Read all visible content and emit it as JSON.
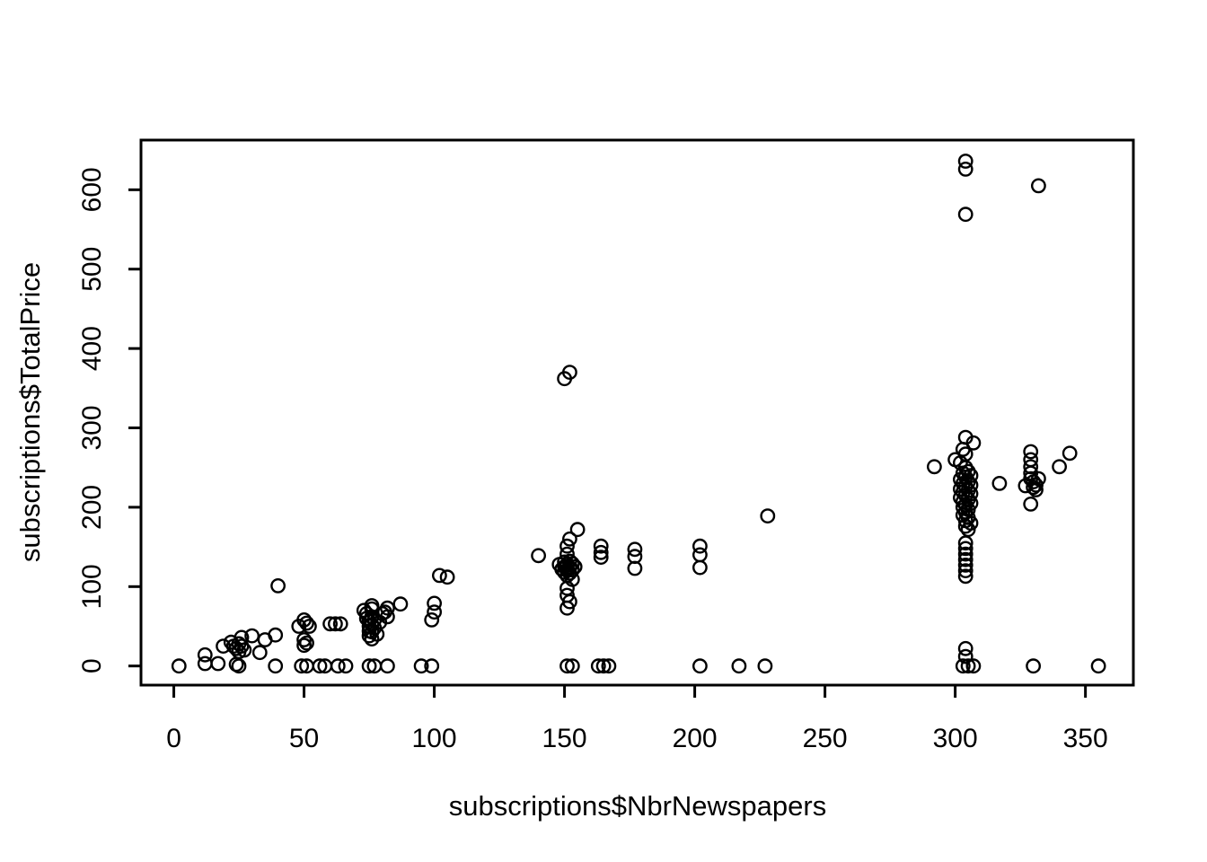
{
  "window": {
    "background_color": "#ffffff",
    "foreground_color": "#000000"
  },
  "chart_data": {
    "type": "scatter",
    "title": "",
    "xlabel": "subscriptions$NbrNewspapers",
    "ylabel": "subscriptions$TotalPrice",
    "x_ticks": [
      0,
      50,
      100,
      150,
      200,
      250,
      300,
      350
    ],
    "y_ticks": [
      0,
      100,
      200,
      300,
      400,
      500,
      600
    ],
    "xlim": [
      -12.6,
      368.4
    ],
    "ylim": [
      -24.1,
      662.6
    ],
    "grid": false,
    "legend": null,
    "marker": {
      "shape": "open-circle",
      "color": "#000000",
      "radius_px": 7.2,
      "stroke_px": 2.4
    },
    "points": [
      [
        2,
        0
      ],
      [
        12,
        14
      ],
      [
        12,
        3
      ],
      [
        17,
        3
      ],
      [
        19,
        25
      ],
      [
        22,
        30
      ],
      [
        23,
        25
      ],
      [
        24,
        22
      ],
      [
        24,
        2
      ],
      [
        25,
        28
      ],
      [
        25,
        18
      ],
      [
        25,
        0
      ],
      [
        26,
        36
      ],
      [
        26,
        25
      ],
      [
        27,
        20
      ],
      [
        30,
        38
      ],
      [
        33,
        17
      ],
      [
        35,
        33
      ],
      [
        39,
        39
      ],
      [
        39,
        0
      ],
      [
        40,
        101
      ],
      [
        48,
        50
      ],
      [
        50,
        58
      ],
      [
        51,
        54
      ],
      [
        52,
        50
      ],
      [
        50,
        33
      ],
      [
        50,
        26
      ],
      [
        51,
        29
      ],
      [
        49,
        0
      ],
      [
        51,
        0
      ],
      [
        56,
        0
      ],
      [
        58,
        0
      ],
      [
        60,
        53
      ],
      [
        62,
        53
      ],
      [
        64,
        53
      ],
      [
        63,
        0
      ],
      [
        66,
        0
      ],
      [
        73,
        70
      ],
      [
        74,
        66
      ],
      [
        74,
        60
      ],
      [
        75,
        56
      ],
      [
        75,
        50
      ],
      [
        75,
        44
      ],
      [
        75,
        38
      ],
      [
        75,
        0
      ],
      [
        76,
        76
      ],
      [
        76,
        72
      ],
      [
        76,
        62
      ],
      [
        76,
        52
      ],
      [
        76,
        43
      ],
      [
        76,
        34
      ],
      [
        77,
        58
      ],
      [
        77,
        48
      ],
      [
        77,
        0
      ],
      [
        78,
        40
      ],
      [
        79,
        55
      ],
      [
        80,
        66
      ],
      [
        81,
        68
      ],
      [
        82,
        73
      ],
      [
        82,
        62
      ],
      [
        82,
        0
      ],
      [
        87,
        78
      ],
      [
        95,
        0
      ],
      [
        99,
        0
      ],
      [
        99,
        58
      ],
      [
        100,
        68
      ],
      [
        100,
        79
      ],
      [
        102,
        114
      ],
      [
        105,
        112
      ],
      [
        140,
        139
      ],
      [
        148,
        128
      ],
      [
        149,
        122
      ],
      [
        150,
        131
      ],
      [
        150,
        125
      ],
      [
        150,
        118
      ],
      [
        150,
        362
      ],
      [
        151,
        151
      ],
      [
        151,
        141
      ],
      [
        151,
        128
      ],
      [
        151,
        121
      ],
      [
        151,
        114
      ],
      [
        151,
        98
      ],
      [
        151,
        89
      ],
      [
        151,
        73
      ],
      [
        151,
        0
      ],
      [
        152,
        160
      ],
      [
        152,
        370
      ],
      [
        152,
        132
      ],
      [
        152,
        124
      ],
      [
        152,
        117
      ],
      [
        152,
        81
      ],
      [
        153,
        129
      ],
      [
        153,
        121
      ],
      [
        153,
        109
      ],
      [
        153,
        0
      ],
      [
        154,
        125
      ],
      [
        155,
        172
      ],
      [
        163,
        0
      ],
      [
        164,
        151
      ],
      [
        164,
        143
      ],
      [
        164,
        137
      ],
      [
        165,
        0
      ],
      [
        167,
        0
      ],
      [
        177,
        147
      ],
      [
        177,
        138
      ],
      [
        177,
        123
      ],
      [
        202,
        151
      ],
      [
        202,
        140
      ],
      [
        202,
        124
      ],
      [
        202,
        0
      ],
      [
        217,
        0
      ],
      [
        227,
        0
      ],
      [
        228,
        189
      ],
      [
        292,
        251
      ],
      [
        300,
        260
      ],
      [
        302,
        256
      ],
      [
        302,
        235
      ],
      [
        302,
        223
      ],
      [
        302,
        212
      ],
      [
        303,
        273
      ],
      [
        303,
        243
      ],
      [
        303,
        230
      ],
      [
        303,
        219
      ],
      [
        303,
        207
      ],
      [
        303,
        200
      ],
      [
        303,
        190
      ],
      [
        303,
        0
      ],
      [
        304,
        288
      ],
      [
        304,
        267
      ],
      [
        304,
        250
      ],
      [
        304,
        238
      ],
      [
        304,
        226
      ],
      [
        304,
        215
      ],
      [
        304,
        203
      ],
      [
        304,
        194
      ],
      [
        304,
        183
      ],
      [
        304,
        176
      ],
      [
        304,
        155
      ],
      [
        304,
        148
      ],
      [
        304,
        141
      ],
      [
        304,
        134
      ],
      [
        304,
        127
      ],
      [
        304,
        120
      ],
      [
        304,
        113
      ],
      [
        304,
        22
      ],
      [
        304,
        12
      ],
      [
        304,
        636
      ],
      [
        304,
        626
      ],
      [
        304,
        569
      ],
      [
        305,
        245
      ],
      [
        305,
        232
      ],
      [
        305,
        221
      ],
      [
        305,
        210
      ],
      [
        305,
        197
      ],
      [
        305,
        187
      ],
      [
        305,
        172
      ],
      [
        305,
        0
      ],
      [
        306,
        240
      ],
      [
        306,
        228
      ],
      [
        306,
        217
      ],
      [
        306,
        205
      ],
      [
        306,
        180
      ],
      [
        307,
        281
      ],
      [
        307,
        0
      ],
      [
        317,
        230
      ],
      [
        327,
        227
      ],
      [
        329,
        270
      ],
      [
        329,
        260
      ],
      [
        329,
        251
      ],
      [
        329,
        243
      ],
      [
        329,
        236
      ],
      [
        329,
        204
      ],
      [
        330,
        232
      ],
      [
        330,
        225
      ],
      [
        330,
        0
      ],
      [
        331,
        228
      ],
      [
        331,
        222
      ],
      [
        332,
        236
      ],
      [
        332,
        605
      ],
      [
        340,
        251
      ],
      [
        344,
        268
      ],
      [
        355,
        0
      ]
    ]
  }
}
